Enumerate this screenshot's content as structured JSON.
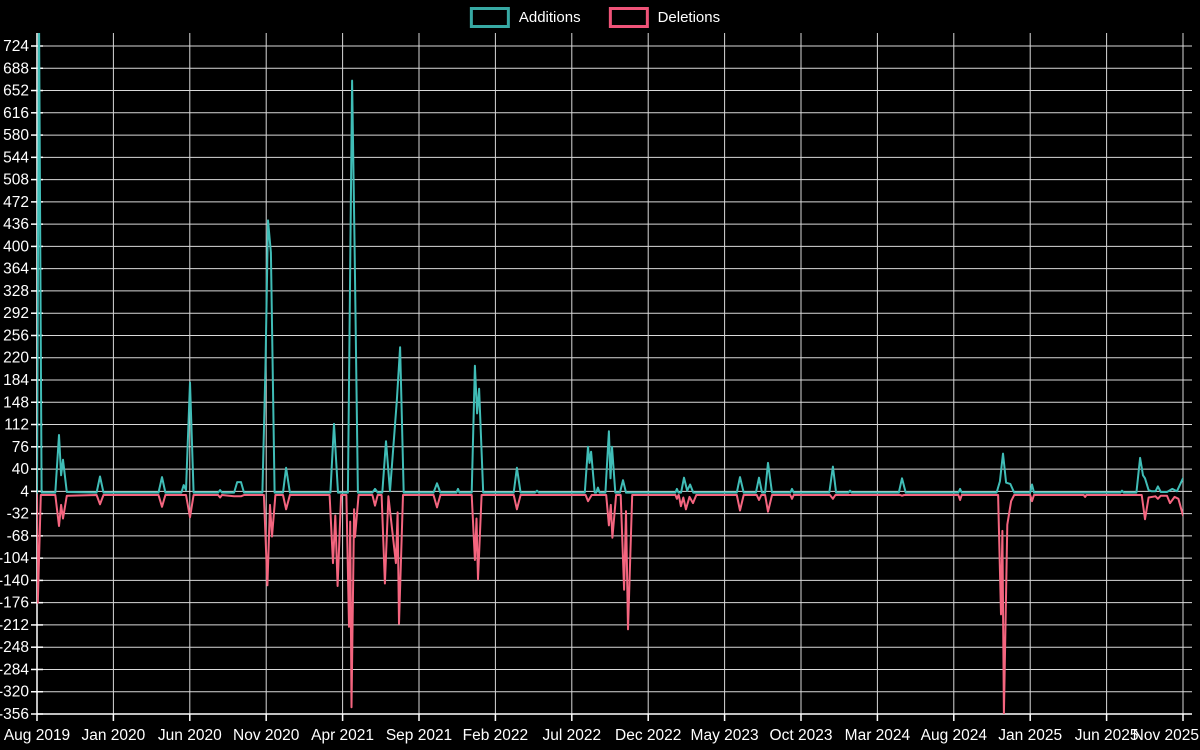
{
  "legend": {
    "items": [
      {
        "label": "Additions",
        "color": "#37a9a4"
      },
      {
        "label": "Deletions",
        "color": "#ef5378"
      }
    ]
  },
  "chart_data": {
    "type": "line",
    "title": "",
    "xlabel": "",
    "ylabel": "",
    "grid": true,
    "background": "#000000",
    "grid_color": "#d9d9d9",
    "text_color": "#ffffff",
    "legend_position": "top-center",
    "x_axis": {
      "labels": [
        "Aug 2019",
        "Jan 2020",
        "Jun 2020",
        "Nov 2020",
        "Apr 2021",
        "Sep 2021",
        "Feb 2022",
        "Jul 2022",
        "Dec 2022",
        "May 2023",
        "Oct 2023",
        "Mar 2024",
        "Aug 2024",
        "Jan 2025",
        "Jun 2025",
        "Nov 2025"
      ],
      "months_per_label": 5,
      "range_months": [
        0,
        75
      ]
    },
    "y_axis": {
      "min": -356,
      "max": 724,
      "tick_step": 36,
      "ticks": [
        724,
        688,
        652,
        616,
        580,
        544,
        508,
        472,
        436,
        400,
        364,
        328,
        292,
        256,
        220,
        184,
        148,
        112,
        76,
        40,
        4,
        -32,
        -68,
        -104,
        -140,
        -176,
        -212,
        -248,
        -284,
        -320,
        -356
      ]
    },
    "series": [
      {
        "name": "Additions",
        "color": "#40bdb7",
        "note_peak_clipped": "first point exceeds chart top (>724)",
        "points": [
          [
            0,
            2
          ],
          [
            0.13,
            780
          ],
          [
            0.3,
            2
          ],
          [
            1.2,
            2
          ],
          [
            1.44,
            95
          ],
          [
            1.58,
            30
          ],
          [
            1.7,
            55
          ],
          [
            1.95,
            3
          ],
          [
            3.9,
            2
          ],
          [
            4.12,
            28
          ],
          [
            4.35,
            2
          ],
          [
            7.95,
            2
          ],
          [
            8.18,
            27
          ],
          [
            8.4,
            2
          ],
          [
            9.45,
            2
          ],
          [
            9.6,
            14
          ],
          [
            9.75,
            6
          ],
          [
            10.01,
            180
          ],
          [
            10.25,
            2
          ],
          [
            11.85,
            2
          ],
          [
            11.98,
            6
          ],
          [
            12.1,
            2
          ],
          [
            12.9,
            2
          ],
          [
            13.1,
            19
          ],
          [
            13.35,
            19
          ],
          [
            13.55,
            2
          ],
          [
            14.75,
            2
          ],
          [
            14.95,
            200
          ],
          [
            15.12,
            442
          ],
          [
            15.31,
            390
          ],
          [
            15.55,
            2
          ],
          [
            16.1,
            2
          ],
          [
            16.3,
            42
          ],
          [
            16.55,
            2
          ],
          [
            19.2,
            2
          ],
          [
            19.44,
            113
          ],
          [
            19.7,
            2
          ],
          [
            20.35,
            2
          ],
          [
            20.62,
            668
          ],
          [
            20.78,
            410
          ],
          [
            21.0,
            2
          ],
          [
            21.95,
            2
          ],
          [
            22.12,
            8
          ],
          [
            22.3,
            2
          ],
          [
            22.6,
            2
          ],
          [
            22.84,
            85
          ],
          [
            23.1,
            4
          ],
          [
            23.55,
            150
          ],
          [
            23.76,
            237
          ],
          [
            24.0,
            2
          ],
          [
            25.95,
            2
          ],
          [
            26.18,
            17
          ],
          [
            26.4,
            2
          ],
          [
            27.45,
            2
          ],
          [
            27.55,
            8
          ],
          [
            27.65,
            2
          ],
          [
            28.45,
            2
          ],
          [
            28.66,
            207
          ],
          [
            28.8,
            130
          ],
          [
            28.93,
            170
          ],
          [
            29.2,
            2
          ],
          [
            31.2,
            2
          ],
          [
            31.41,
            42
          ],
          [
            31.65,
            2
          ],
          [
            32.6,
            2
          ],
          [
            32.72,
            5
          ],
          [
            32.85,
            2
          ],
          [
            35.85,
            2
          ],
          [
            36.06,
            76
          ],
          [
            36.16,
            50
          ],
          [
            36.26,
            68
          ],
          [
            36.5,
            2
          ],
          [
            36.6,
            2
          ],
          [
            36.71,
            10
          ],
          [
            36.82,
            2
          ],
          [
            37.2,
            2
          ],
          [
            37.43,
            101
          ],
          [
            37.53,
            25
          ],
          [
            37.63,
            76
          ],
          [
            37.85,
            2
          ],
          [
            38.15,
            2
          ],
          [
            38.35,
            22
          ],
          [
            38.55,
            2
          ],
          [
            41.78,
            2
          ],
          [
            41.88,
            8
          ],
          [
            41.98,
            2
          ],
          [
            42.15,
            2
          ],
          [
            42.34,
            26
          ],
          [
            42.55,
            5
          ],
          [
            42.74,
            15
          ],
          [
            42.95,
            2
          ],
          [
            45.8,
            2
          ],
          [
            46.01,
            27
          ],
          [
            46.25,
            2
          ],
          [
            47.05,
            2
          ],
          [
            47.25,
            26
          ],
          [
            47.45,
            2
          ],
          [
            47.65,
            2
          ],
          [
            47.84,
            50
          ],
          [
            48.1,
            2
          ],
          [
            49.3,
            2
          ],
          [
            49.41,
            8
          ],
          [
            49.52,
            2
          ],
          [
            51.85,
            2
          ],
          [
            52.09,
            44
          ],
          [
            52.3,
            2
          ],
          [
            53.1,
            2
          ],
          [
            53.21,
            5
          ],
          [
            53.32,
            2
          ],
          [
            56.4,
            2
          ],
          [
            56.61,
            25
          ],
          [
            56.85,
            2
          ],
          [
            60.3,
            2
          ],
          [
            60.41,
            8
          ],
          [
            60.52,
            2
          ],
          [
            62.8,
            2
          ],
          [
            63.02,
            20
          ],
          [
            63.22,
            65
          ],
          [
            63.42,
            18
          ],
          [
            63.7,
            16
          ],
          [
            63.95,
            2
          ],
          [
            65.0,
            2
          ],
          [
            65.12,
            15
          ],
          [
            65.25,
            2
          ],
          [
            70.9,
            2
          ],
          [
            71.01,
            5
          ],
          [
            71.12,
            2
          ],
          [
            71.95,
            2
          ],
          [
            72.19,
            58
          ],
          [
            72.38,
            30
          ],
          [
            72.51,
            25
          ],
          [
            72.75,
            6
          ],
          [
            72.95,
            4
          ],
          [
            73.2,
            4
          ],
          [
            73.36,
            12
          ],
          [
            73.55,
            3
          ],
          [
            73.95,
            3
          ],
          [
            74.3,
            8
          ],
          [
            74.6,
            4
          ],
          [
            75,
            25
          ]
        ]
      },
      {
        "name": "Deletions",
        "color": "#f4657f",
        "points": [
          [
            0,
            -2
          ],
          [
            0.05,
            -176
          ],
          [
            0.25,
            -2
          ],
          [
            1.2,
            -2
          ],
          [
            1.44,
            -52
          ],
          [
            1.58,
            -18
          ],
          [
            1.7,
            -40
          ],
          [
            1.95,
            -3
          ],
          [
            3.9,
            -2
          ],
          [
            4.12,
            -17
          ],
          [
            4.35,
            -2
          ],
          [
            7.95,
            -2
          ],
          [
            8.18,
            -21
          ],
          [
            8.4,
            -2
          ],
          [
            9.75,
            -2
          ],
          [
            10.01,
            -38
          ],
          [
            10.25,
            -2
          ],
          [
            11.85,
            -2
          ],
          [
            11.98,
            -6
          ],
          [
            12.1,
            -2
          ],
          [
            12.9,
            -4
          ],
          [
            13.35,
            -4
          ],
          [
            13.55,
            -2
          ],
          [
            14.85,
            -2
          ],
          [
            15.08,
            -148
          ],
          [
            15.25,
            -18
          ],
          [
            15.38,
            -69
          ],
          [
            15.6,
            -2
          ],
          [
            16.1,
            -2
          ],
          [
            16.3,
            -25
          ],
          [
            16.55,
            -2
          ],
          [
            19.15,
            -2
          ],
          [
            19.37,
            -112
          ],
          [
            19.52,
            -35
          ],
          [
            19.67,
            -149
          ],
          [
            19.9,
            -2
          ],
          [
            20.25,
            -2
          ],
          [
            20.42,
            -215
          ],
          [
            20.5,
            -45
          ],
          [
            20.58,
            -345
          ],
          [
            20.75,
            -25
          ],
          [
            20.81,
            -70
          ],
          [
            21.05,
            -2
          ],
          [
            21.95,
            -2
          ],
          [
            22.12,
            -19
          ],
          [
            22.3,
            -2
          ],
          [
            22.55,
            -2
          ],
          [
            22.77,
            -145
          ],
          [
            23.0,
            -4
          ],
          [
            23.49,
            -112
          ],
          [
            23.6,
            -30
          ],
          [
            23.69,
            -210
          ],
          [
            23.95,
            -2
          ],
          [
            25.95,
            -2
          ],
          [
            26.18,
            -22
          ],
          [
            26.4,
            -2
          ],
          [
            28.45,
            -2
          ],
          [
            28.66,
            -107
          ],
          [
            28.76,
            -40
          ],
          [
            28.86,
            -138
          ],
          [
            29.1,
            -2
          ],
          [
            31.2,
            -2
          ],
          [
            31.41,
            -25
          ],
          [
            31.65,
            -2
          ],
          [
            35.9,
            -2
          ],
          [
            36.06,
            -12
          ],
          [
            36.3,
            -2
          ],
          [
            37.25,
            -2
          ],
          [
            37.43,
            -51
          ],
          [
            37.55,
            -18
          ],
          [
            37.66,
            -71
          ],
          [
            37.9,
            -2
          ],
          [
            38.2,
            -2
          ],
          [
            38.42,
            -155
          ],
          [
            38.55,
            -28
          ],
          [
            38.68,
            -219
          ],
          [
            38.95,
            -2
          ],
          [
            41.78,
            -2
          ],
          [
            41.88,
            -8
          ],
          [
            41.98,
            -2
          ],
          [
            42.0,
            -2
          ],
          [
            42.14,
            -20
          ],
          [
            42.3,
            -6
          ],
          [
            42.47,
            -25
          ],
          [
            42.7,
            -5
          ],
          [
            42.93,
            -15
          ],
          [
            43.15,
            -2
          ],
          [
            45.8,
            -2
          ],
          [
            46.01,
            -27
          ],
          [
            46.25,
            -2
          ],
          [
            47.1,
            -2
          ],
          [
            47.25,
            -10
          ],
          [
            47.4,
            -2
          ],
          [
            47.65,
            -2
          ],
          [
            47.84,
            -29
          ],
          [
            48.1,
            -2
          ],
          [
            49.3,
            -2
          ],
          [
            49.41,
            -8
          ],
          [
            49.52,
            -2
          ],
          [
            51.9,
            -2
          ],
          [
            52.09,
            -8
          ],
          [
            52.25,
            -2
          ],
          [
            56.5,
            -2
          ],
          [
            56.61,
            -3
          ],
          [
            56.75,
            -2
          ],
          [
            60.3,
            -2
          ],
          [
            60.41,
            -10
          ],
          [
            60.52,
            -2
          ],
          [
            62.9,
            -2
          ],
          [
            63.09,
            -195
          ],
          [
            63.18,
            -60
          ],
          [
            63.28,
            -356
          ],
          [
            63.5,
            -50
          ],
          [
            63.75,
            -12
          ],
          [
            63.95,
            -2
          ],
          [
            65.0,
            -2
          ],
          [
            65.12,
            -12
          ],
          [
            65.25,
            -2
          ],
          [
            68.5,
            -2
          ],
          [
            68.59,
            -5
          ],
          [
            68.68,
            -2
          ],
          [
            72.3,
            -2
          ],
          [
            72.51,
            -41
          ],
          [
            72.75,
            -6
          ],
          [
            73.2,
            -4
          ],
          [
            73.36,
            -8
          ],
          [
            73.55,
            -3
          ],
          [
            73.95,
            -3
          ],
          [
            74.15,
            -15
          ],
          [
            74.45,
            -5
          ],
          [
            74.7,
            -8
          ],
          [
            75,
            -35
          ]
        ]
      }
    ]
  }
}
